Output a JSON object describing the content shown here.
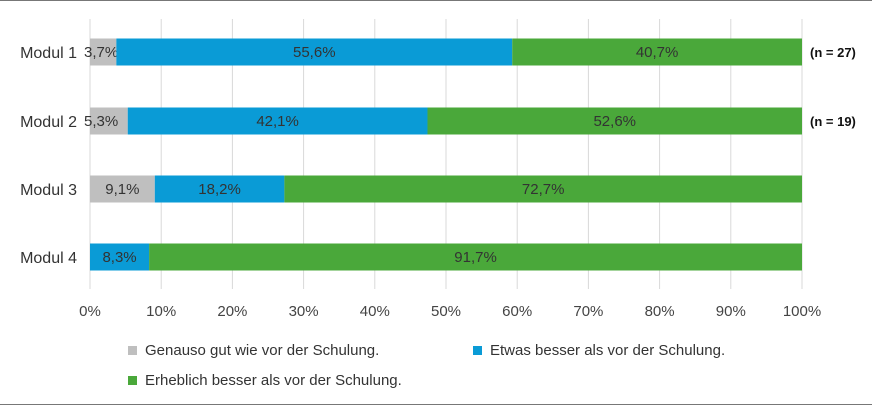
{
  "chart_data": {
    "type": "bar",
    "orientation": "horizontal",
    "stacked": true,
    "categories": [
      "Modul 1",
      "Modul 2",
      "Modul 3",
      "Modul 4"
    ],
    "series": [
      {
        "name": "Genauso gut wie vor der Schulung.",
        "color": "#bfbfbf",
        "values": [
          3.7,
          5.3,
          9.1,
          0
        ],
        "labels": [
          "3,7%",
          "5,3%",
          "9,1%",
          ""
        ]
      },
      {
        "name": "Etwas besser als vor der Schulung.",
        "color": "#0a9bd6",
        "values": [
          55.6,
          42.1,
          18.2,
          8.3
        ],
        "labels": [
          "55,6%",
          "42,1%",
          "18,2%",
          "8,3%"
        ]
      },
      {
        "name": "Erheblich besser als vor der Schulung.",
        "color": "#4aa83a",
        "values": [
          40.7,
          52.6,
          72.7,
          91.7
        ],
        "labels": [
          "40,7%",
          "52,6%",
          "72,7%",
          "91,7%"
        ]
      }
    ],
    "row_notes": [
      "(n = 27)",
      "(n = 19)",
      "",
      ""
    ],
    "xlim": [
      0,
      100
    ],
    "x_ticks": [
      0,
      10,
      20,
      30,
      40,
      50,
      60,
      70,
      80,
      90,
      100
    ],
    "x_tick_labels": [
      "0%",
      "10%",
      "20%",
      "30%",
      "40%",
      "50%",
      "60%",
      "70%",
      "80%",
      "90%",
      "100%"
    ],
    "grid": "vertical",
    "legend_position": "bottom"
  }
}
